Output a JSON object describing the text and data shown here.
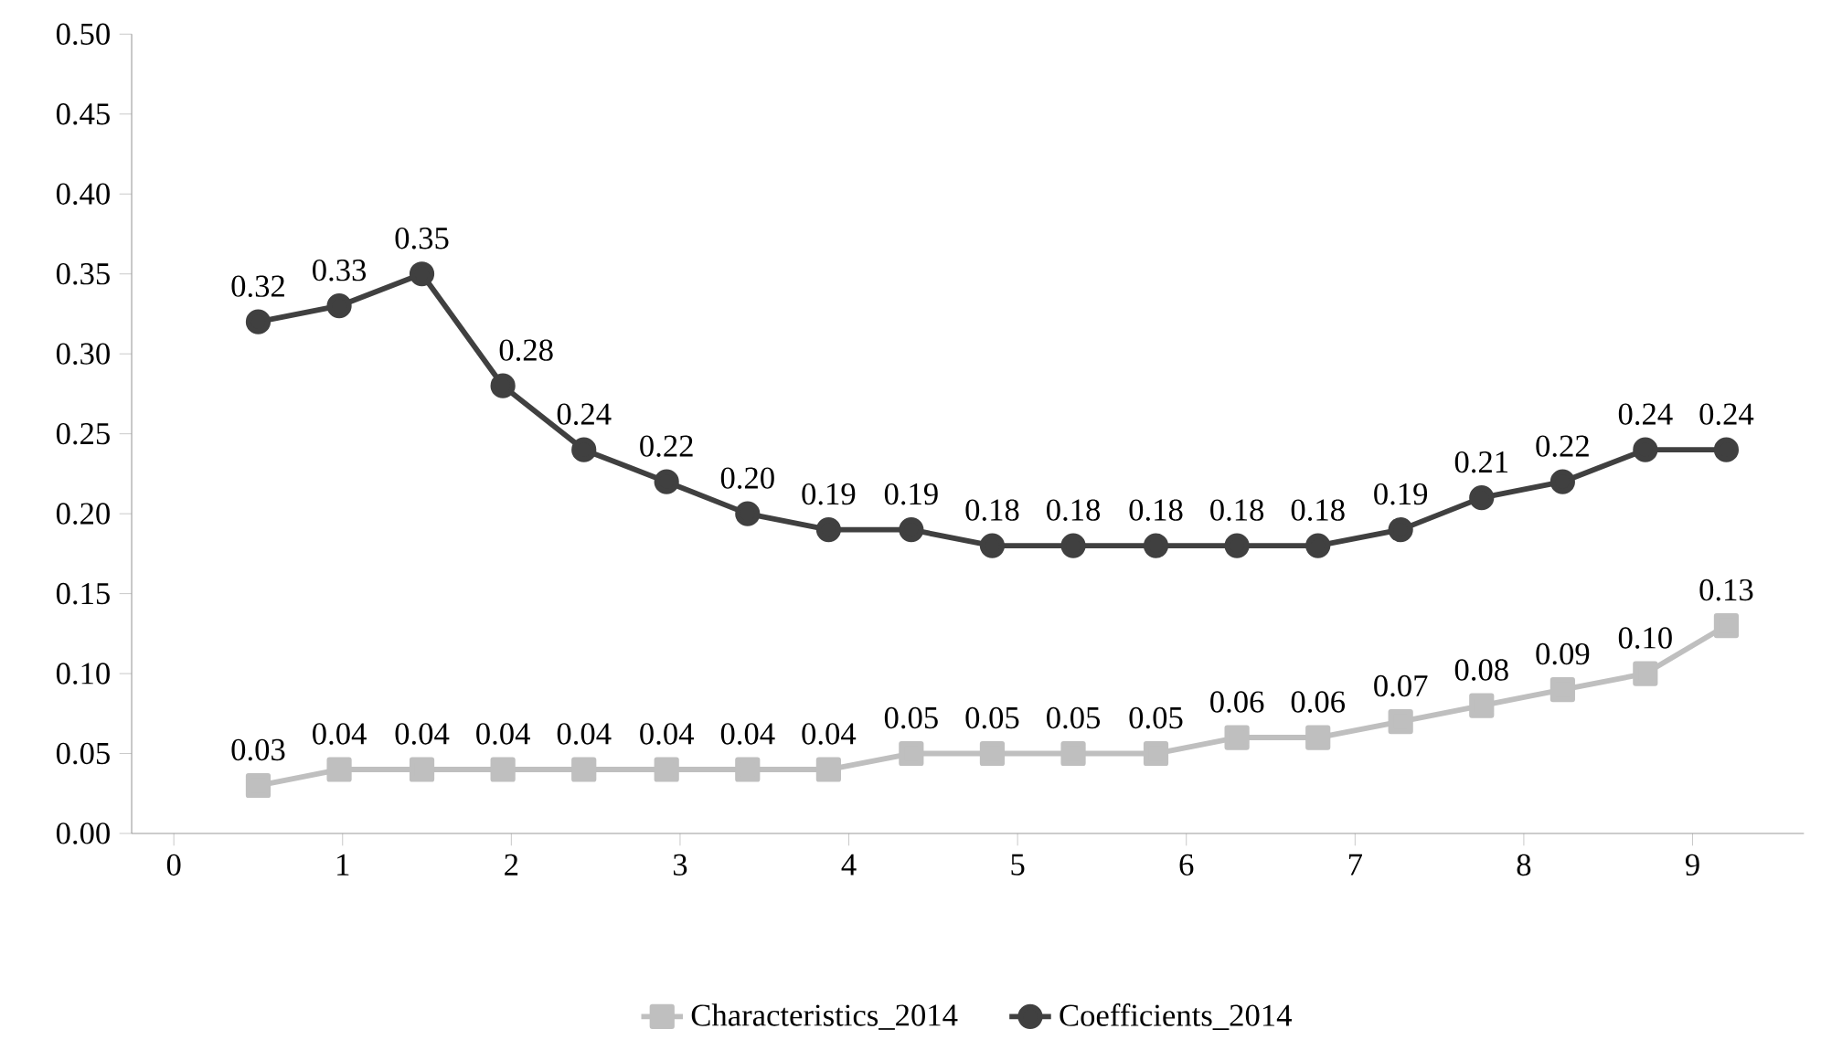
{
  "chart_data": {
    "type": "line",
    "x": [
      0.5,
      0.98,
      1.47,
      1.95,
      2.43,
      2.92,
      3.4,
      3.88,
      4.37,
      4.85,
      5.33,
      5.82,
      6.3,
      6.78,
      7.27,
      7.75,
      8.23,
      8.72,
      9.2
    ],
    "series": [
      {
        "name": "Characteristics_2014",
        "color": "#bfbfbf",
        "marker": "square",
        "values": [
          0.03,
          0.04,
          0.04,
          0.04,
          0.04,
          0.04,
          0.04,
          0.04,
          0.05,
          0.05,
          0.05,
          0.05,
          0.06,
          0.06,
          0.07,
          0.08,
          0.09,
          0.1,
          0.13
        ],
        "value_labels": [
          "0.03",
          "0.04",
          "0.04",
          "0.04",
          "0.04",
          "0.04",
          "0.04",
          "0.04",
          "0.05",
          "0.05",
          "0.05",
          "0.05",
          "0.06",
          "0.06",
          "0.07",
          "0.08",
          "0.09",
          "0.10",
          "0.13"
        ]
      },
      {
        "name": "Coefficients_2014",
        "color": "#404040",
        "marker": "circle",
        "values": [
          0.32,
          0.33,
          0.35,
          0.28,
          0.24,
          0.22,
          0.2,
          0.19,
          0.19,
          0.18,
          0.18,
          0.18,
          0.18,
          0.18,
          0.19,
          0.21,
          0.22,
          0.24,
          0.24
        ],
        "value_labels": [
          "0.32",
          "0.33",
          "0.35",
          "0.28",
          "0.24",
          "0.22",
          "0.20",
          "0.19",
          "0.19",
          "0.18",
          "0.18",
          "0.18",
          "0.18",
          "0.18",
          "0.19",
          "0.21",
          "0.22",
          "0.24",
          "0.24"
        ]
      }
    ],
    "xlim": [
      -0.25,
      9.66
    ],
    "xticks": [
      0,
      1,
      2,
      3,
      4,
      5,
      6,
      7,
      8,
      9
    ],
    "ylim": [
      0,
      0.5
    ],
    "yticks": [
      {
        "value": 0,
        "label": "0.00"
      },
      {
        "value": 0.05,
        "label": "0.05"
      },
      {
        "value": 0.1,
        "label": "0.10"
      },
      {
        "value": 0.15,
        "label": "0.15"
      },
      {
        "value": 0.2,
        "label": "0.20"
      },
      {
        "value": 0.25,
        "label": "0.25"
      },
      {
        "value": 0.3,
        "label": "0.30"
      },
      {
        "value": 0.35,
        "label": "0.35"
      },
      {
        "value": 0.4,
        "label": "0.40"
      },
      {
        "value": 0.45,
        "label": "0.45"
      },
      {
        "value": 0.5,
        "label": "0.50"
      }
    ],
    "grid": false,
    "legend": "bottom"
  }
}
